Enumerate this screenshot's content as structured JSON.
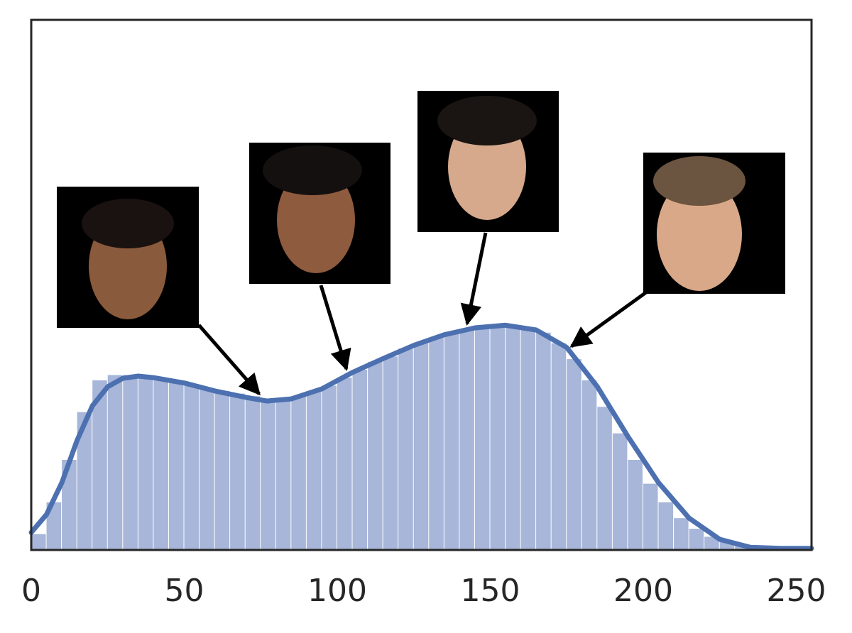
{
  "chart_data": {
    "type": "histogram",
    "bins": [
      0,
      5,
      10,
      15,
      20,
      25,
      30,
      35,
      40,
      45,
      50,
      55,
      60,
      65,
      70,
      75,
      80,
      85,
      90,
      95,
      100,
      105,
      110,
      115,
      120,
      125,
      130,
      135,
      140,
      145,
      150,
      155,
      160,
      165,
      170,
      175,
      180,
      185,
      190,
      195,
      200,
      205,
      210,
      215,
      220,
      225,
      230,
      235,
      240,
      245,
      250,
      255
    ],
    "counts": [
      3,
      9,
      17,
      26,
      32,
      33,
      33,
      32.5,
      32,
      31.5,
      31,
      30.5,
      30,
      29.5,
      29,
      28.5,
      28.5,
      29,
      30,
      31,
      32.5,
      34,
      35.5,
      36.5,
      38,
      39,
      40,
      41,
      41.5,
      42,
      42.3,
      42.3,
      42,
      41,
      39,
      36,
      32,
      27,
      22,
      17,
      12.5,
      9,
      6,
      4,
      2.5,
      1.5,
      0.8,
      0.4,
      0.2,
      0.1,
      0.1
    ],
    "color": "#a7b6d9",
    "kde": {
      "x": [
        0,
        5,
        10,
        15,
        20,
        25,
        30,
        35,
        40,
        50,
        60,
        70,
        77,
        85,
        95,
        105,
        115,
        125,
        135,
        145,
        155,
        165,
        175,
        185,
        195,
        205,
        215,
        225,
        235,
        245,
        255
      ],
      "values": [
        3.3,
        6.7,
        12.7,
        20.7,
        27.2,
        30.8,
        32.4,
        32.8,
        32.5,
        31.5,
        30.0,
        28.8,
        28.1,
        28.5,
        30.4,
        33.5,
        36.1,
        38.6,
        40.6,
        41.9,
        42.4,
        41.5,
        38.2,
        30.8,
        21.4,
        12.7,
        6.0,
        2.0,
        0.5,
        0.3,
        0.3
      ],
      "color": "#4c70b0"
    },
    "xlim": [
      0,
      255
    ],
    "xticks": [
      0,
      50,
      100,
      150,
      200,
      250
    ],
    "ylim": [
      0,
      100
    ]
  }
}
